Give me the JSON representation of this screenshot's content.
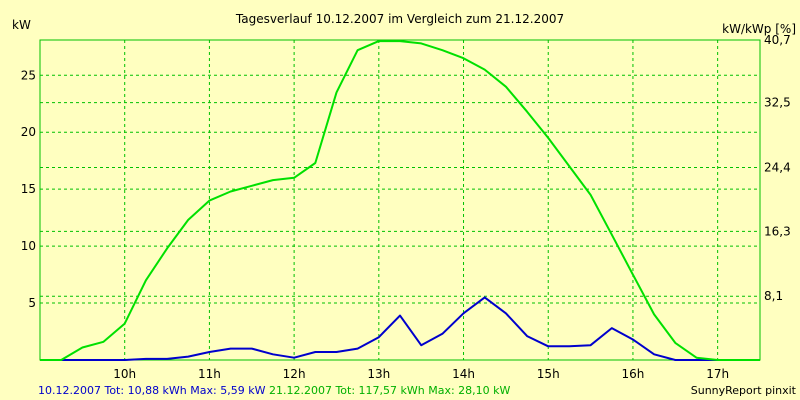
{
  "chart_data": {
    "type": "line",
    "title": "Tagesverlauf 10.12.2007 im Vergleich zum 21.12.2007",
    "ylabel_left": "kW",
    "ylabel_right": "kW/kWp [%]",
    "x_ticks": [
      10,
      11,
      12,
      13,
      14,
      15,
      16,
      17
    ],
    "x_tick_labels": [
      "10h",
      "11h",
      "12h",
      "13h",
      "14h",
      "15h",
      "16h",
      "17h"
    ],
    "xlim": [
      9.0,
      17.5
    ],
    "ylim": [
      0,
      28.1
    ],
    "y_ticks_left": [
      5,
      10,
      15,
      20,
      25
    ],
    "y_ticks_right": [
      5.6,
      11.3,
      16.9,
      22.6,
      28.1
    ],
    "y_tick_labels_right": [
      "8,1",
      "16,3",
      "24,4",
      "32,5",
      "40,7"
    ],
    "grid": true,
    "background_color": "#ffffc0",
    "grid_color": "#00c000",
    "series": [
      {
        "color": "#0000cc",
        "x": [
          9.0,
          9.25,
          9.5,
          9.75,
          10.0,
          10.25,
          10.5,
          10.75,
          11.0,
          11.25,
          11.5,
          11.75,
          12.0,
          12.25,
          12.5,
          12.75,
          13.0,
          13.25,
          13.5,
          13.75,
          14.0,
          14.25,
          14.5,
          14.75,
          15.0,
          15.25,
          15.5,
          15.75,
          16.0,
          16.25,
          16.5,
          16.75,
          17.0,
          17.25,
          17.5
        ],
        "y": [
          0,
          0,
          0,
          0,
          0,
          0.1,
          0.1,
          0.3,
          0.7,
          1.0,
          1.0,
          0.5,
          0.2,
          0.7,
          0.7,
          1.0,
          2.0,
          3.9,
          1.3,
          2.3,
          4.1,
          5.5,
          4.1,
          2.1,
          1.2,
          1.2,
          1.3,
          2.8,
          1.8,
          0.5,
          0,
          0,
          0,
          0,
          0
        ]
      },
      {
        "color": "#00e000",
        "x": [
          9.0,
          9.25,
          9.5,
          9.75,
          10.0,
          10.25,
          10.5,
          10.75,
          11.0,
          11.25,
          11.5,
          11.75,
          12.0,
          12.25,
          12.5,
          12.75,
          13.0,
          13.25,
          13.5,
          13.75,
          14.0,
          14.25,
          14.5,
          14.75,
          15.0,
          15.25,
          15.5,
          15.75,
          16.0,
          16.25,
          16.5,
          16.75,
          17.0,
          17.25,
          17.5
        ],
        "y": [
          0,
          0,
          1.1,
          1.6,
          3.2,
          7.0,
          9.8,
          12.3,
          14.0,
          14.8,
          15.3,
          15.8,
          16.0,
          17.3,
          23.5,
          27.2,
          28.0,
          28.0,
          27.8,
          27.2,
          26.5,
          25.5,
          24.0,
          21.8,
          19.5,
          17.0,
          14.5,
          11.0,
          7.5,
          4.0,
          1.5,
          0.2,
          0,
          0,
          0
        ]
      }
    ],
    "footer_left": [
      {
        "text": "10.12.2007 Tot: 10,88 kWh Max: 5,59 kW",
        "color": "#0000cc"
      },
      {
        "text": "21.12.2007 Tot: 117,57 kWh Max: 28,10 kW",
        "color": "#00b000"
      }
    ],
    "footer_right": "SunnyReport pinxit"
  }
}
